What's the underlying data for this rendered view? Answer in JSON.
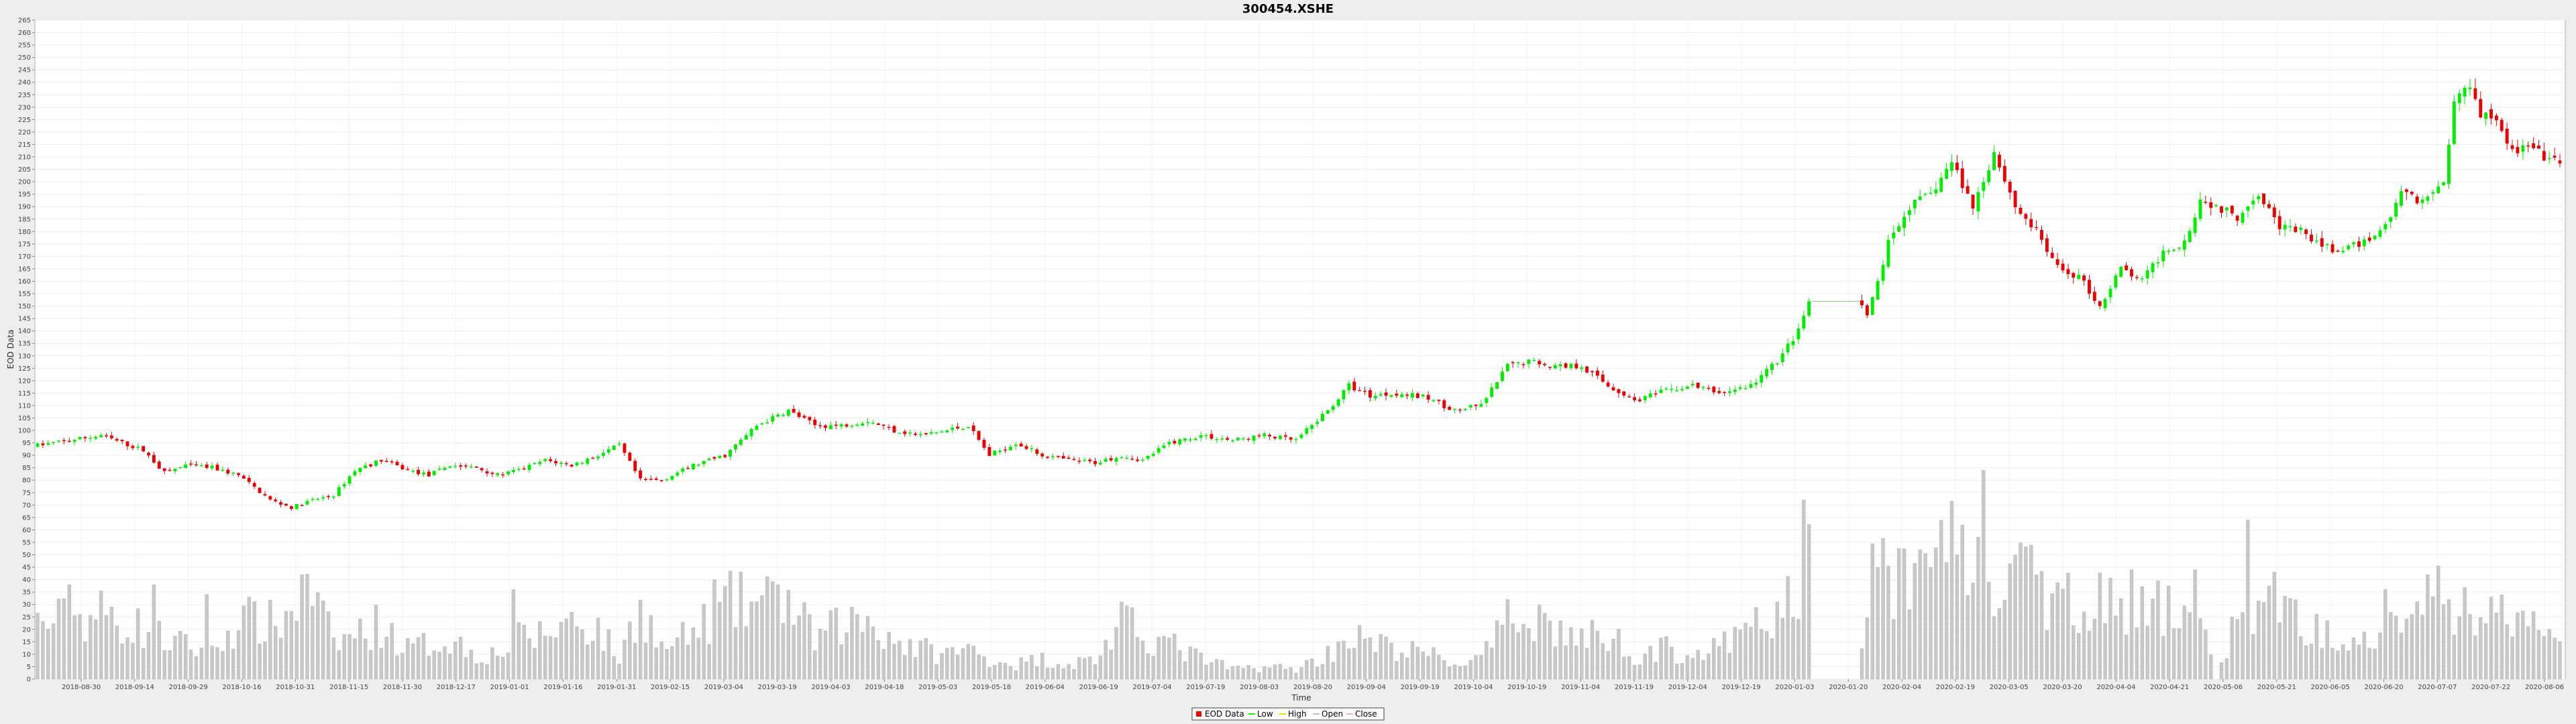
{
  "chart_data": {
    "type": "candlestick",
    "title": "300454.XSHE",
    "xlabel": "Time",
    "ylabel": "EOD Data",
    "ylim": [
      0,
      265
    ],
    "y_tick_step": 5,
    "grid": true,
    "legend_position": "bottom-center",
    "x_tick_labels": [
      "2018-08-30",
      "2018-09-14",
      "2018-09-29",
      "2018-10-16",
      "2018-10-31",
      "2018-11-15",
      "2018-11-30",
      "2018-12-17",
      "2019-01-01",
      "2019-01-16",
      "2019-01-31",
      "2019-02-15",
      "2019-03-04",
      "2019-03-19",
      "2019-04-03",
      "2019-04-18",
      "2019-05-03",
      "2019-05-18",
      "2019-06-04",
      "2019-06-19",
      "2019-07-04",
      "2019-07-19",
      "2019-08-03",
      "2019-08-20",
      "2019-09-04",
      "2019-09-19",
      "2019-10-04",
      "2019-10-19",
      "2019-11-04",
      "2019-11-19",
      "2019-12-04",
      "2019-12-19",
      "2020-01-03",
      "2020-01-20",
      "2020-02-04",
      "2020-02-19",
      "2020-03-05",
      "2020-03-20",
      "2020-04-04",
      "2020-04-21",
      "2020-05-06",
      "2020-05-21",
      "2020-06-05",
      "2020-06-20",
      "2020-07-07",
      "2020-07-22",
      "2020-08-06"
    ],
    "legend": [
      {
        "name": "EOD Data",
        "color": "#ff0000"
      },
      {
        "name": "Low",
        "color": "#00ff00"
      },
      {
        "name": "High",
        "color": "#e0e000"
      },
      {
        "name": "Open",
        "color": "#c0c0c0"
      },
      {
        "name": "Close",
        "color": "#ffb0b0"
      }
    ],
    "colors": {
      "up": "#00ee00",
      "down": "#ee0000",
      "volume": "#c8c8c8",
      "doji": "#88cc88"
    },
    "price_anchors": [
      [
        0,
        94
      ],
      [
        6,
        96
      ],
      [
        12,
        98
      ],
      [
        16,
        95
      ],
      [
        20,
        92
      ],
      [
        24,
        83
      ],
      [
        28,
        86
      ],
      [
        33,
        85
      ],
      [
        38,
        82
      ],
      [
        44,
        72
      ],
      [
        48,
        69
      ],
      [
        52,
        72
      ],
      [
        56,
        74
      ],
      [
        60,
        84
      ],
      [
        65,
        88
      ],
      [
        70,
        84
      ],
      [
        74,
        82
      ],
      [
        78,
        86
      ],
      [
        83,
        85
      ],
      [
        87,
        82
      ],
      [
        91,
        84
      ],
      [
        96,
        88
      ],
      [
        101,
        86
      ],
      [
        106,
        90
      ],
      [
        110,
        94
      ],
      [
        114,
        80
      ],
      [
        118,
        80
      ],
      [
        124,
        86
      ],
      [
        130,
        90
      ],
      [
        136,
        102
      ],
      [
        142,
        108
      ],
      [
        147,
        102
      ],
      [
        152,
        102
      ],
      [
        157,
        104
      ],
      [
        162,
        100
      ],
      [
        167,
        98
      ],
      [
        172,
        100
      ],
      [
        176,
        102
      ],
      [
        180,
        90
      ],
      [
        185,
        95
      ],
      [
        190,
        90
      ],
      [
        195,
        88
      ],
      [
        200,
        87
      ],
      [
        205,
        90
      ],
      [
        209,
        88
      ],
      [
        214,
        95
      ],
      [
        220,
        98
      ],
      [
        226,
        96
      ],
      [
        232,
        98
      ],
      [
        238,
        96
      ],
      [
        244,
        108
      ],
      [
        248,
        118
      ],
      [
        252,
        114
      ],
      [
        257,
        115
      ],
      [
        263,
        113
      ],
      [
        268,
        108
      ],
      [
        273,
        110
      ],
      [
        278,
        126
      ],
      [
        282,
        128
      ],
      [
        287,
        126
      ],
      [
        292,
        126
      ],
      [
        297,
        118
      ],
      [
        302,
        112
      ],
      [
        308,
        116
      ],
      [
        313,
        118
      ],
      [
        318,
        115
      ],
      [
        324,
        118
      ],
      [
        329,
        128
      ],
      [
        333,
        140
      ],
      [
        336,
        157
      ],
      [
        339,
        156
      ],
      [
        344,
        156
      ],
      [
        346,
        145
      ],
      [
        350,
        175
      ],
      [
        354,
        190
      ],
      [
        358,
        195
      ],
      [
        362,
        208
      ],
      [
        366,
        190
      ],
      [
        370,
        212
      ],
      [
        374,
        190
      ],
      [
        378,
        180
      ],
      [
        382,
        165
      ],
      [
        386,
        162
      ],
      [
        390,
        150
      ],
      [
        394,
        165
      ],
      [
        398,
        160
      ],
      [
        402,
        172
      ],
      [
        406,
        176
      ],
      [
        409,
        193
      ],
      [
        412,
        190
      ],
      [
        416,
        186
      ],
      [
        420,
        196
      ],
      [
        424,
        182
      ],
      [
        428,
        180
      ],
      [
        432,
        174
      ],
      [
        436,
        172
      ],
      [
        440,
        176
      ],
      [
        444,
        182
      ],
      [
        447,
        196
      ],
      [
        451,
        192
      ],
      [
        455,
        200
      ],
      [
        457,
        232
      ],
      [
        460,
        240
      ],
      [
        462,
        228
      ],
      [
        465,
        226
      ],
      [
        468,
        212
      ],
      [
        471,
        214
      ],
      [
        474,
        210
      ],
      [
        477,
        207
      ]
    ],
    "volume_anchors": [
      [
        0,
        22
      ],
      [
        12,
        26
      ],
      [
        20,
        20
      ],
      [
        24,
        16
      ],
      [
        33,
        10
      ],
      [
        38,
        24
      ],
      [
        44,
        22
      ],
      [
        48,
        26
      ],
      [
        52,
        34
      ],
      [
        56,
        14
      ],
      [
        60,
        18
      ],
      [
        65,
        22
      ],
      [
        70,
        12
      ],
      [
        74,
        14
      ],
      [
        78,
        16
      ],
      [
        83,
        10
      ],
      [
        87,
        10
      ],
      [
        91,
        16
      ],
      [
        96,
        18
      ],
      [
        101,
        24
      ],
      [
        106,
        20
      ],
      [
        110,
        8
      ],
      [
        114,
        30
      ],
      [
        118,
        12
      ],
      [
        124,
        18
      ],
      [
        130,
        30
      ],
      [
        136,
        30
      ],
      [
        142,
        30
      ],
      [
        147,
        16
      ],
      [
        152,
        22
      ],
      [
        157,
        24
      ],
      [
        162,
        16
      ],
      [
        167,
        12
      ],
      [
        172,
        10
      ],
      [
        176,
        12
      ],
      [
        180,
        8
      ],
      [
        185,
        6
      ],
      [
        190,
        8
      ],
      [
        195,
        6
      ],
      [
        200,
        8
      ],
      [
        205,
        22
      ],
      [
        209,
        18
      ],
      [
        214,
        14
      ],
      [
        220,
        8
      ],
      [
        226,
        4
      ],
      [
        232,
        5
      ],
      [
        238,
        4
      ],
      [
        244,
        10
      ],
      [
        248,
        18
      ],
      [
        252,
        14
      ],
      [
        257,
        12
      ],
      [
        263,
        10
      ],
      [
        268,
        6
      ],
      [
        273,
        8
      ],
      [
        278,
        22
      ],
      [
        282,
        28
      ],
      [
        287,
        20
      ],
      [
        292,
        16
      ],
      [
        297,
        18
      ],
      [
        302,
        10
      ],
      [
        308,
        12
      ],
      [
        313,
        10
      ],
      [
        318,
        12
      ],
      [
        324,
        20
      ],
      [
        329,
        25
      ],
      [
        333,
        36
      ],
      [
        336,
        64
      ],
      [
        339,
        36
      ],
      [
        344,
        0
      ],
      [
        346,
        40
      ],
      [
        350,
        44
      ],
      [
        354,
        34
      ],
      [
        358,
        48
      ],
      [
        362,
        58
      ],
      [
        366,
        50
      ],
      [
        370,
        36
      ],
      [
        374,
        40
      ],
      [
        378,
        38
      ],
      [
        382,
        30
      ],
      [
        386,
        32
      ],
      [
        390,
        36
      ],
      [
        394,
        24
      ],
      [
        398,
        26
      ],
      [
        402,
        28
      ],
      [
        406,
        30
      ],
      [
        409,
        22
      ],
      [
        412,
        0
      ],
      [
        416,
        26
      ],
      [
        420,
        24
      ],
      [
        424,
        34
      ],
      [
        428,
        22
      ],
      [
        432,
        18
      ],
      [
        436,
        20
      ],
      [
        440,
        20
      ],
      [
        444,
        24
      ],
      [
        447,
        26
      ],
      [
        451,
        30
      ],
      [
        455,
        32
      ],
      [
        457,
        30
      ],
      [
        460,
        26
      ],
      [
        462,
        28
      ],
      [
        465,
        26
      ],
      [
        468,
        24
      ],
      [
        471,
        22
      ],
      [
        474,
        18
      ],
      [
        477,
        16
      ]
    ],
    "volume_spikes": [
      [
        6,
        38
      ],
      [
        22,
        38
      ],
      [
        32,
        34
      ],
      [
        50,
        42
      ],
      [
        90,
        36
      ],
      [
        128,
        40
      ],
      [
        140,
        38
      ],
      [
        278,
        32
      ],
      [
        334,
        72
      ],
      [
        336,
        64
      ],
      [
        356,
        52
      ],
      [
        364,
        62
      ],
      [
        368,
        84
      ],
      [
        396,
        44
      ],
      [
        408,
        44
      ],
      [
        418,
        64
      ],
      [
        444,
        36
      ],
      [
        452,
        42
      ]
    ],
    "gaps": [
      [
        335,
        345
      ]
    ],
    "count": 478,
    "seed": 7
  }
}
